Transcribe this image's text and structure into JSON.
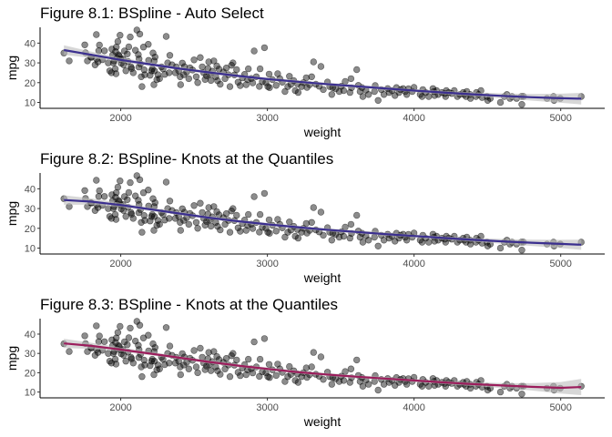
{
  "figure": {
    "background": "#ffffff",
    "point_color": "#000000",
    "band_color": "#bdbdbd"
  },
  "chart_data": [
    {
      "type": "scatter",
      "title": "Figure 8.1: BSpline - Auto Select",
      "xlabel": "weight",
      "ylabel": "mpg",
      "xlim": [
        1450,
        5300
      ],
      "ylim": [
        7,
        48
      ],
      "xticks": [
        2000,
        3000,
        4000,
        5000
      ],
      "yticks": [
        10,
        20,
        30,
        40
      ],
      "grid": false,
      "line_color": "#3b2f8f",
      "fit": [
        [
          1613,
          36.5
        ],
        [
          1800,
          34.1
        ],
        [
          2000,
          31.5
        ],
        [
          2200,
          29.3
        ],
        [
          2400,
          27.1
        ],
        [
          2600,
          25.2
        ],
        [
          2800,
          23.4
        ],
        [
          3000,
          21.8
        ],
        [
          3200,
          20.5
        ],
        [
          3400,
          19.3
        ],
        [
          3600,
          18.2
        ],
        [
          3800,
          17.1
        ],
        [
          4000,
          16.0
        ],
        [
          4200,
          15.0
        ],
        [
          4400,
          14.1
        ],
        [
          4600,
          13.3
        ],
        [
          4800,
          12.6
        ],
        [
          5000,
          12.1
        ],
        [
          5140,
          11.9
        ]
      ],
      "band_width": [
        2.4,
        1.6,
        1.1,
        0.9,
        0.8,
        0.8,
        0.8,
        0.8,
        0.8,
        0.8,
        0.8,
        0.8,
        0.8,
        0.9,
        1.0,
        1.3,
        1.7,
        2.3,
        2.9
      ]
    },
    {
      "type": "scatter",
      "title": "Figure 8.2: BSpline- Knots at the Quantiles",
      "xlabel": "weight",
      "ylabel": "mpg",
      "xlim": [
        1450,
        5300
      ],
      "ylim": [
        7,
        48
      ],
      "xticks": [
        2000,
        3000,
        4000,
        5000
      ],
      "yticks": [
        10,
        20,
        30,
        40
      ],
      "grid": false,
      "line_color": "#3b2f8f",
      "fit": [
        [
          1613,
          34.3
        ],
        [
          1800,
          33.5
        ],
        [
          2000,
          31.8
        ],
        [
          2200,
          29.6
        ],
        [
          2400,
          27.5
        ],
        [
          2600,
          25.4
        ],
        [
          2800,
          23.6
        ],
        [
          3000,
          22.0
        ],
        [
          3200,
          20.6
        ],
        [
          3400,
          19.3
        ],
        [
          3600,
          18.2
        ],
        [
          3800,
          17.1
        ],
        [
          4000,
          16.1
        ],
        [
          4200,
          15.1
        ],
        [
          4400,
          14.2
        ],
        [
          4600,
          13.4
        ],
        [
          4800,
          12.7
        ],
        [
          5000,
          12.1
        ],
        [
          5140,
          11.7
        ]
      ],
      "band_width": [
        2.4,
        1.6,
        1.1,
        0.9,
        0.8,
        0.8,
        0.8,
        0.8,
        0.8,
        0.8,
        0.8,
        0.8,
        0.8,
        0.9,
        1.0,
        1.2,
        1.6,
        2.1,
        2.6
      ]
    },
    {
      "type": "scatter",
      "title": "Figure 8.3: BSpline - Knots at the Quantiles",
      "xlabel": "weight",
      "ylabel": "mpg",
      "xlim": [
        1450,
        5300
      ],
      "ylim": [
        7,
        48
      ],
      "xticks": [
        2000,
        3000,
        4000,
        5000
      ],
      "yticks": [
        10,
        20,
        30,
        40
      ],
      "grid": false,
      "line_color": "#9b1d5c",
      "fit": [
        [
          1613,
          35.2
        ],
        [
          1800,
          33.9
        ],
        [
          2000,
          32.0
        ],
        [
          2200,
          29.9
        ],
        [
          2400,
          27.8
        ],
        [
          2600,
          25.6
        ],
        [
          2800,
          23.7
        ],
        [
          3000,
          22.0
        ],
        [
          3200,
          20.4
        ],
        [
          3400,
          19.1
        ],
        [
          3600,
          18.0
        ],
        [
          3800,
          17.0
        ],
        [
          4000,
          16.0
        ],
        [
          4200,
          15.0
        ],
        [
          4400,
          14.1
        ],
        [
          4600,
          13.4
        ],
        [
          4800,
          12.7
        ],
        [
          5000,
          12.2
        ],
        [
          5140,
          12.6
        ]
      ],
      "band_width": [
        2.4,
        1.6,
        1.1,
        0.9,
        0.8,
        0.8,
        0.8,
        0.8,
        0.8,
        0.8,
        0.8,
        0.8,
        0.8,
        0.9,
        1.0,
        1.3,
        1.9,
        3.0,
        4.2
      ]
    }
  ],
  "points": [
    [
      1613,
      35
    ],
    [
      1649,
      31
    ],
    [
      1755,
      39.1
    ],
    [
      1760,
      35.1
    ],
    [
      1773,
      31
    ],
    [
      1795,
      33
    ],
    [
      1800,
      32.8
    ],
    [
      1825,
      29
    ],
    [
      1834,
      44.3
    ],
    [
      1835,
      32
    ],
    [
      1845,
      30.5
    ],
    [
      1850,
      36.1
    ],
    [
      1855,
      39
    ],
    [
      1875,
      31.6
    ],
    [
      1889,
      36.1
    ],
    [
      1915,
      30
    ],
    [
      1925,
      26
    ],
    [
      1937,
      25
    ],
    [
      1940,
      37
    ],
    [
      1945,
      34
    ],
    [
      1950,
      30
    ],
    [
      1955,
      31
    ],
    [
      1963,
      27
    ],
    [
      1965,
      35.7
    ],
    [
      1968,
      24.5
    ],
    [
      1970,
      38
    ],
    [
      1975,
      32.4
    ],
    [
      1980,
      40.8
    ],
    [
      1985,
      34.1
    ],
    [
      1990,
      33.5
    ],
    [
      1995,
      44
    ],
    [
      2000,
      31.8
    ],
    [
      2003,
      29.8
    ],
    [
      2015,
      32
    ],
    [
      2020,
      29
    ],
    [
      2025,
      36
    ],
    [
      2035,
      26
    ],
    [
      2045,
      34.5
    ],
    [
      2050,
      30.7
    ],
    [
      2055,
      38.1
    ],
    [
      2065,
      43.1
    ],
    [
      2070,
      28
    ],
    [
      2074,
      27.2
    ],
    [
      2085,
      25
    ],
    [
      2100,
      36.4
    ],
    [
      2110,
      46.6
    ],
    [
      2120,
      34.2
    ],
    [
      2123,
      27.9
    ],
    [
      2125,
      32
    ],
    [
      2130,
      44.6
    ],
    [
      2135,
      29.5
    ],
    [
      2140,
      23
    ],
    [
      2145,
      18
    ],
    [
      2155,
      38
    ],
    [
      2160,
      26.5
    ],
    [
      2164,
      24
    ],
    [
      2188,
      39.4
    ],
    [
      2190,
      31.3
    ],
    [
      2200,
      23.7
    ],
    [
      2210,
      26
    ],
    [
      2215,
      27
    ],
    [
      2220,
      35
    ],
    [
      2226,
      19
    ],
    [
      2228,
      31
    ],
    [
      2230,
      26
    ],
    [
      2234,
      33
    ],
    [
      2246,
      21.5
    ],
    [
      2254,
      24
    ],
    [
      2265,
      22
    ],
    [
      2278,
      28
    ],
    [
      2288,
      27
    ],
    [
      2300,
      24.2
    ],
    [
      2310,
      43.4
    ],
    [
      2320,
      30
    ],
    [
      2330,
      25
    ],
    [
      2335,
      33.8
    ],
    [
      2350,
      29
    ],
    [
      2372,
      25
    ],
    [
      2379,
      28
    ],
    [
      2395,
      26
    ],
    [
      2405,
      23
    ],
    [
      2408,
      19
    ],
    [
      2420,
      29.9
    ],
    [
      2430,
      24
    ],
    [
      2434,
      28.1
    ],
    [
      2450,
      25.4
    ],
    [
      2464,
      22
    ],
    [
      2472,
      27.5
    ],
    [
      2490,
      26.4
    ],
    [
      2500,
      31.5
    ],
    [
      2515,
      23
    ],
    [
      2525,
      20
    ],
    [
      2542,
      32.7
    ],
    [
      2556,
      28
    ],
    [
      2565,
      25
    ],
    [
      2575,
      21.6
    ],
    [
      2585,
      23.5
    ],
    [
      2595,
      27.2
    ],
    [
      2600,
      30.5
    ],
    [
      2605,
      24.2
    ],
    [
      2615,
      21.1
    ],
    [
      2625,
      25.8
    ],
    [
      2635,
      31
    ],
    [
      2648,
      23
    ],
    [
      2655,
      28.4
    ],
    [
      2660,
      21
    ],
    [
      2670,
      26.8
    ],
    [
      2678,
      19.2
    ],
    [
      2700,
      25.4
    ],
    [
      2711,
      22
    ],
    [
      2720,
      27.4
    ],
    [
      2735,
      24
    ],
    [
      2745,
      18
    ],
    [
      2755,
      28.8
    ],
    [
      2765,
      30
    ],
    [
      2775,
      23.9
    ],
    [
      2790,
      26.6
    ],
    [
      2800,
      20.2
    ],
    [
      2815,
      18.5
    ],
    [
      2830,
      22.4
    ],
    [
      2845,
      24.2
    ],
    [
      2855,
      19
    ],
    [
      2865,
      21.5
    ],
    [
      2870,
      27
    ],
    [
      2890,
      22.1
    ],
    [
      2900,
      19.9
    ],
    [
      2910,
      36
    ],
    [
      2925,
      23
    ],
    [
      2945,
      18.1
    ],
    [
      2950,
      27
    ],
    [
      2965,
      20.5
    ],
    [
      2980,
      37.7
    ],
    [
      2990,
      20
    ],
    [
      3003,
      18
    ],
    [
      3012,
      24.3
    ],
    [
      3015,
      17.5
    ],
    [
      3035,
      21.5
    ],
    [
      3060,
      18.6
    ],
    [
      3070,
      24.5
    ],
    [
      3085,
      22
    ],
    [
      3102,
      20.2
    ],
    [
      3120,
      15.5
    ],
    [
      3139,
      18
    ],
    [
      3150,
      23.2
    ],
    [
      3160,
      19.1
    ],
    [
      3180,
      21
    ],
    [
      3190,
      16
    ],
    [
      3205,
      19.4
    ],
    [
      3210,
      15
    ],
    [
      3233,
      18
    ],
    [
      3245,
      20
    ],
    [
      3265,
      22.5
    ],
    [
      3270,
      17.6
    ],
    [
      3288,
      19
    ],
    [
      3302,
      23
    ],
    [
      3315,
      30.5
    ],
    [
      3330,
      19.2
    ],
    [
      3353,
      18.2
    ],
    [
      3365,
      28.2
    ],
    [
      3381,
      16.5
    ],
    [
      3410,
      20.3
    ],
    [
      3425,
      18
    ],
    [
      3439,
      14
    ],
    [
      3445,
      17.5
    ],
    [
      3465,
      16.9
    ],
    [
      3490,
      15.5
    ],
    [
      3504,
      18.2
    ],
    [
      3520,
      16
    ],
    [
      3530,
      20.6
    ],
    [
      3563,
      15
    ],
    [
      3570,
      22
    ],
    [
      3574,
      17.4
    ],
    [
      3609,
      26.6
    ],
    [
      3620,
      18.6
    ],
    [
      3632,
      15.5
    ],
    [
      3645,
      17.5
    ],
    [
      3651,
      13
    ],
    [
      3672,
      16.2
    ],
    [
      3690,
      14
    ],
    [
      3730,
      15.5
    ],
    [
      3735,
      18.5
    ],
    [
      3755,
      11
    ],
    [
      3777,
      16.5
    ],
    [
      3795,
      14
    ],
    [
      3820,
      17
    ],
    [
      3830,
      15
    ],
    [
      3850,
      16
    ],
    [
      3870,
      13.5
    ],
    [
      3880,
      17.5
    ],
    [
      3897,
      15
    ],
    [
      3907,
      16.5
    ],
    [
      3925,
      17
    ],
    [
      3940,
      15.5
    ],
    [
      3950,
      14
    ],
    [
      3962,
      16.9
    ],
    [
      3988,
      15.5
    ],
    [
      4000,
      17.6
    ],
    [
      4042,
      14
    ],
    [
      4055,
      13
    ],
    [
      4060,
      16.5
    ],
    [
      4080,
      15
    ],
    [
      4100,
      13
    ],
    [
      4129,
      17
    ],
    [
      4135,
      15.5
    ],
    [
      4140,
      13.5
    ],
    [
      4154,
      16
    ],
    [
      4165,
      14
    ],
    [
      4190,
      15
    ],
    [
      4209,
      14.5
    ],
    [
      4215,
      13
    ],
    [
      4220,
      16
    ],
    [
      4237,
      15
    ],
    [
      4257,
      14.5
    ],
    [
      4274,
      16
    ],
    [
      4295,
      13
    ],
    [
      4312,
      14
    ],
    [
      4335,
      15
    ],
    [
      4341,
      14
    ],
    [
      4354,
      13
    ],
    [
      4360,
      15.5
    ],
    [
      4382,
      14
    ],
    [
      4385,
      12
    ],
    [
      4422,
      13
    ],
    [
      4425,
      15
    ],
    [
      4440,
      14
    ],
    [
      4456,
      16
    ],
    [
      4464,
      12.5
    ],
    [
      4498,
      13
    ],
    [
      4502,
      11
    ],
    [
      4520,
      12
    ],
    [
      4589,
      10
    ],
    [
      4615,
      13
    ],
    [
      4633,
      14
    ],
    [
      4654,
      12
    ],
    [
      4668,
      13
    ],
    [
      4699,
      12
    ],
    [
      4732,
      13
    ],
    [
      4735,
      9
    ],
    [
      4746,
      13
    ],
    [
      4906,
      12
    ],
    [
      4951,
      13
    ],
    [
      4955,
      11
    ],
    [
      4997,
      12
    ],
    [
      5140,
      13
    ]
  ]
}
